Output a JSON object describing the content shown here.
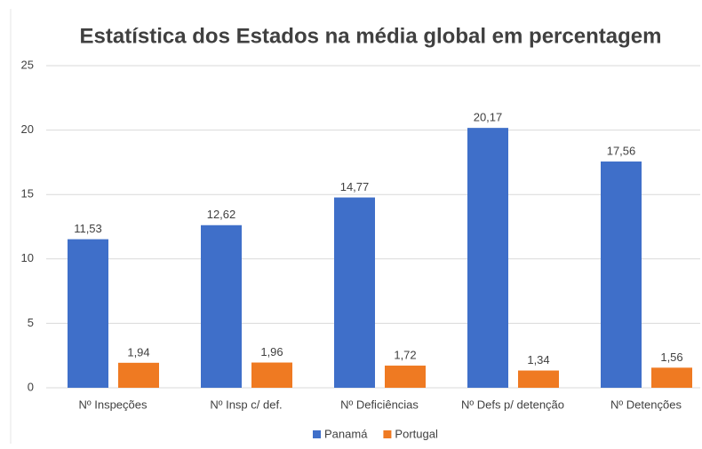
{
  "chart_data": {
    "type": "bar",
    "title": "Estatística dos Estados na média global em percentagem",
    "categories": [
      "Nº Inspeções",
      "Nº Insp c/ def.",
      "Nº Deficiências",
      "Nº Defs p/ detenção",
      "Nº Detenções"
    ],
    "series": [
      {
        "name": "Panamá",
        "color": "#3f6fc9",
        "values": [
          11.53,
          12.62,
          14.77,
          20.17,
          17.56
        ],
        "value_labels": [
          "11,53",
          "12,62",
          "14,77",
          "20,17",
          "17,56"
        ]
      },
      {
        "name": "Portugal",
        "color": "#ef7a22",
        "values": [
          1.94,
          1.96,
          1.72,
          1.34,
          1.56
        ],
        "value_labels": [
          "1,94",
          "1,96",
          "1,72",
          "1,34",
          "1,56"
        ]
      }
    ],
    "ylim": [
      0,
      25
    ],
    "yticks": [
      0,
      5,
      10,
      15,
      20,
      25
    ],
    "grid": true,
    "legend": "bottom"
  }
}
